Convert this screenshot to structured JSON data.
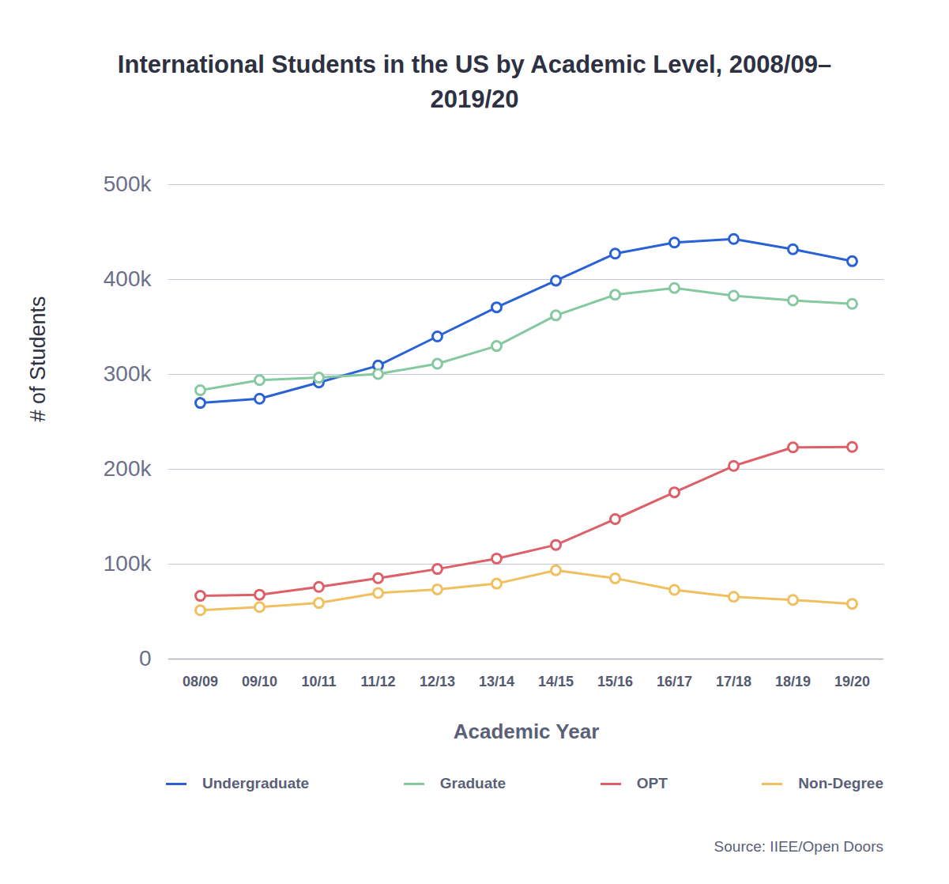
{
  "chart_data": {
    "type": "line",
    "title": "International Students in the US by Academic Level, 2008/09–2019/20",
    "x_label": "Academic Year",
    "y_label": "# of Students",
    "caption": "Source: IIEE/Open Doors",
    "categories": [
      "08/09",
      "09/10",
      "10/11",
      "11/12",
      "12/13",
      "13/14",
      "14/15",
      "15/16",
      "16/17",
      "17/18",
      "18/19",
      "19/20"
    ],
    "series": [
      {
        "name": "Undergraduate",
        "color": "#2a62d6",
        "marker": "circle",
        "line_style": "solid",
        "values": [
          269900,
          274400,
          291400,
          309300,
          340000,
          370700,
          398800,
          427300,
          439000,
          442700,
          431900,
          419300
        ]
      },
      {
        "name": "Graduate",
        "color": "#86c9a0",
        "marker": "circle",
        "line_style": "solid",
        "values": [
          283300,
          293900,
          296600,
          300400,
          311200,
          329900,
          362200,
          383900,
          391100,
          382900,
          377900,
          374400
        ]
      },
      {
        "name": "OPT",
        "color": "#dd6068",
        "marker": "circle",
        "line_style": "solid",
        "values": [
          66600,
          67800,
          76000,
          85200,
          94900,
          105900,
          120300,
          147500,
          175700,
          203500,
          223100,
          223500
        ]
      },
      {
        "name": "Non-Degree",
        "color": "#f0c060",
        "marker": "circle",
        "line_style": "solid",
        "values": [
          51400,
          54800,
          59100,
          69600,
          73400,
          79500,
          93600,
          85100,
          72900,
          65600,
          62300,
          58200
        ]
      }
    ],
    "ylim": [
      0,
      500000
    ],
    "yticks": [
      0,
      {
        "value": 100000,
        "label": "100k"
      },
      {
        "value": 200000,
        "label": "200k"
      },
      {
        "value": 300000,
        "label": "300k"
      },
      {
        "value": 400000,
        "label": "400k"
      },
      {
        "value": 500000,
        "label": "500k"
      }
    ],
    "grid": true,
    "legend": "bottom"
  }
}
